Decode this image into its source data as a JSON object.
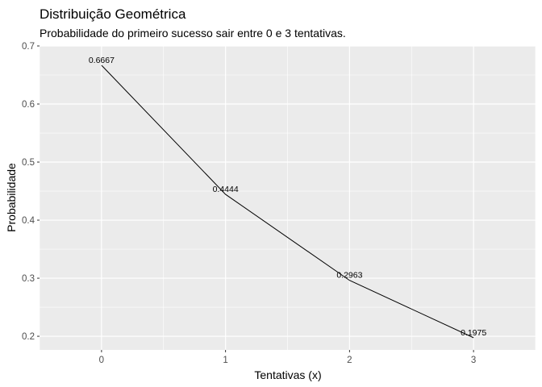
{
  "chart_data": {
    "type": "line",
    "title": "Distribuição Geométrica",
    "subtitle": "Probabilidade do primeiro sucesso sair entre 0 e 3 tentativas.",
    "xlabel": "Tentativas (x)",
    "ylabel": "Probabilidade",
    "x": [
      0,
      1,
      2,
      3
    ],
    "y": [
      0.6667,
      0.4444,
      0.2963,
      0.1975
    ],
    "data_labels": [
      "0.6667",
      "0.4444",
      "0.2963",
      "0.1975"
    ],
    "x_ticks": [
      0,
      1,
      2,
      3
    ],
    "x_tick_labels": [
      "0",
      "1",
      "2",
      "3"
    ],
    "y_ticks": [
      0.2,
      0.3,
      0.4,
      0.5,
      0.6,
      0.7
    ],
    "y_tick_labels": [
      "0.2",
      "0.3",
      "0.4",
      "0.5",
      "0.6",
      "0.7"
    ],
    "xlim": [
      -0.5,
      3.5
    ],
    "ylim": [
      0.1765,
      0.7
    ],
    "grid": true,
    "colors": {
      "panel": "#ebebeb",
      "grid": "#ffffff",
      "line": "#000000"
    }
  }
}
